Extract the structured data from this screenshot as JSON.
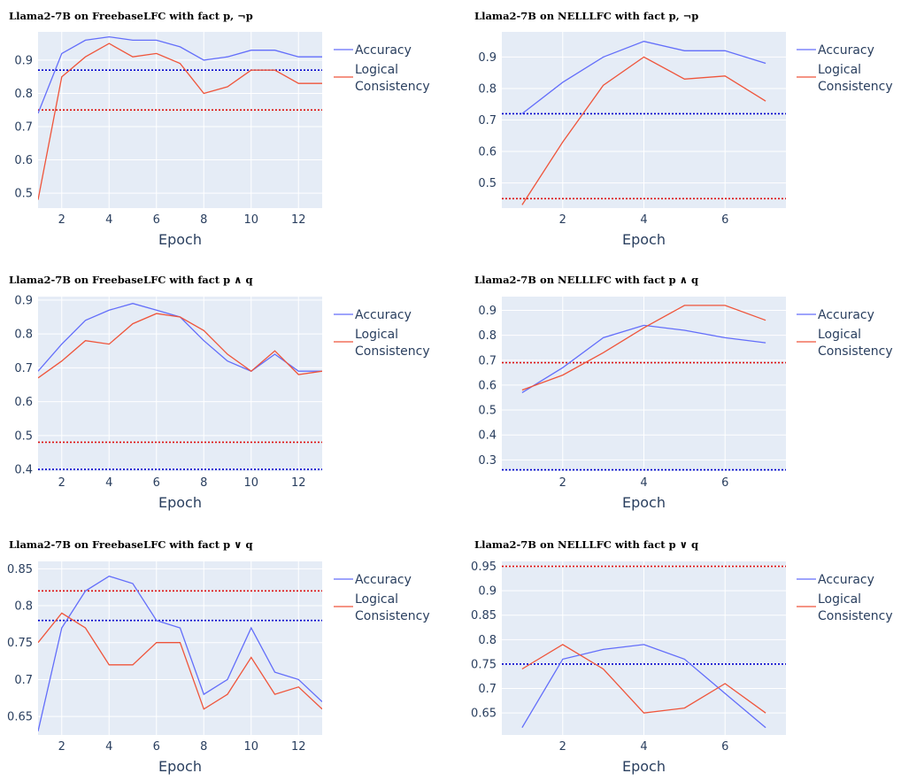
{
  "legend": {
    "accuracy": "Accuracy",
    "logical_line1": "Logical",
    "logical_line2": "Consistency"
  },
  "colors": {
    "accuracy": "#636efa",
    "logical": "#ef553b",
    "accuracy_baseline": "#0000cc",
    "logical_baseline": "#dd1111",
    "plot_bg": "#e5ecf6",
    "grid": "#ffffff"
  },
  "chart_data": [
    {
      "type": "line",
      "title": "Llama2-7B on FreebaseLFC with fact p, ¬p",
      "xlabel": "Epoch",
      "ylabel": "",
      "xlim": [
        1,
        13
      ],
      "ylim": [
        0.455,
        0.985
      ],
      "xticks": [
        2,
        4,
        6,
        8,
        10,
        12
      ],
      "yticks": [
        0.5,
        0.6,
        0.7,
        0.8,
        0.9
      ],
      "x": [
        1,
        2,
        3,
        4,
        5,
        6,
        7,
        8,
        9,
        10,
        11,
        12,
        13
      ],
      "series": [
        {
          "name": "Accuracy",
          "values": [
            0.74,
            0.92,
            0.96,
            0.97,
            0.96,
            0.96,
            0.94,
            0.9,
            0.91,
            0.93,
            0.93,
            0.91,
            0.91
          ]
        },
        {
          "name": "Logical Consistency",
          "values": [
            0.48,
            0.85,
            0.91,
            0.95,
            0.91,
            0.92,
            0.89,
            0.8,
            0.82,
            0.87,
            0.87,
            0.83,
            0.83
          ]
        }
      ],
      "baselines": {
        "accuracy": 0.87,
        "logical": 0.75
      },
      "grid": true,
      "legend": "right"
    },
    {
      "type": "line",
      "title": "Llama2-7B on NELLLFC with fact p, ¬p",
      "xlabel": "Epoch",
      "ylabel": "",
      "xlim": [
        0.5,
        7.5
      ],
      "ylim": [
        0.42,
        0.98
      ],
      "xticks": [
        2,
        4,
        6
      ],
      "yticks": [
        0.5,
        0.6,
        0.7,
        0.8,
        0.9
      ],
      "x": [
        1,
        2,
        3,
        4,
        5,
        6,
        7
      ],
      "series": [
        {
          "name": "Accuracy",
          "values": [
            0.72,
            0.82,
            0.9,
            0.95,
            0.92,
            0.92,
            0.88
          ]
        },
        {
          "name": "Logical Consistency",
          "values": [
            0.43,
            0.63,
            0.81,
            0.9,
            0.83,
            0.84,
            0.76
          ]
        }
      ],
      "baselines": {
        "accuracy": 0.72,
        "logical": 0.45
      },
      "grid": true,
      "legend": "right"
    },
    {
      "type": "line",
      "title": "Llama2-7B on FreebaseLFC with fact p ∧ q",
      "xlabel": "Epoch",
      "ylabel": "",
      "xlim": [
        1,
        13
      ],
      "ylim": [
        0.395,
        0.91
      ],
      "xticks": [
        2,
        4,
        6,
        8,
        10,
        12
      ],
      "yticks": [
        0.4,
        0.5,
        0.6,
        0.7,
        0.8,
        0.9
      ],
      "x": [
        1,
        2,
        3,
        4,
        5,
        6,
        7,
        8,
        9,
        10,
        11,
        12,
        13
      ],
      "series": [
        {
          "name": "Accuracy",
          "values": [
            0.69,
            0.77,
            0.84,
            0.87,
            0.89,
            0.87,
            0.85,
            0.78,
            0.72,
            0.69,
            0.74,
            0.69,
            0.69
          ]
        },
        {
          "name": "Logical Consistency",
          "values": [
            0.67,
            0.72,
            0.78,
            0.77,
            0.83,
            0.86,
            0.85,
            0.81,
            0.74,
            0.69,
            0.75,
            0.68,
            0.69
          ]
        }
      ],
      "baselines": {
        "accuracy": 0.4,
        "logical": 0.48
      },
      "grid": true,
      "legend": "right"
    },
    {
      "type": "line",
      "title": "Llama2-7B on NELLLFC with fact p ∧ q",
      "xlabel": "Epoch",
      "ylabel": "",
      "xlim": [
        0.5,
        7.5
      ],
      "ylim": [
        0.255,
        0.955
      ],
      "xticks": [
        2,
        4,
        6
      ],
      "yticks": [
        0.3,
        0.4,
        0.5,
        0.6,
        0.7,
        0.8,
        0.9
      ],
      "x": [
        1,
        2,
        3,
        4,
        5,
        6,
        7
      ],
      "series": [
        {
          "name": "Accuracy",
          "values": [
            0.57,
            0.67,
            0.79,
            0.84,
            0.82,
            0.79,
            0.77
          ]
        },
        {
          "name": "Logical Consistency",
          "values": [
            0.58,
            0.64,
            0.73,
            0.83,
            0.92,
            0.92,
            0.86
          ]
        }
      ],
      "baselines": {
        "accuracy": 0.26,
        "logical": 0.69
      },
      "grid": true,
      "legend": "right"
    },
    {
      "type": "line",
      "title": "Llama2-7B on FreebaseLFC with fact p ∨ q",
      "xlabel": "Epoch",
      "ylabel": "",
      "xlim": [
        1,
        13
      ],
      "ylim": [
        0.625,
        0.86
      ],
      "xticks": [
        2,
        4,
        6,
        8,
        10,
        12
      ],
      "yticks": [
        0.65,
        0.7,
        0.75,
        0.8,
        0.85
      ],
      "x": [
        1,
        2,
        3,
        4,
        5,
        6,
        7,
        8,
        9,
        10,
        11,
        12,
        13
      ],
      "series": [
        {
          "name": "Accuracy",
          "values": [
            0.63,
            0.77,
            0.82,
            0.84,
            0.83,
            0.78,
            0.77,
            0.68,
            0.7,
            0.77,
            0.71,
            0.7,
            0.67
          ]
        },
        {
          "name": "Logical Consistency",
          "values": [
            0.75,
            0.79,
            0.77,
            0.72,
            0.72,
            0.75,
            0.75,
            0.66,
            0.68,
            0.73,
            0.68,
            0.69,
            0.66
          ]
        }
      ],
      "baselines": {
        "accuracy": 0.78,
        "logical": 0.82
      },
      "grid": true,
      "legend": "right"
    },
    {
      "type": "line",
      "title": "Llama2-7B on NELLLFC with fact p ∨ q",
      "xlabel": "Epoch",
      "ylabel": "",
      "xlim": [
        0.5,
        7.5
      ],
      "ylim": [
        0.605,
        0.96
      ],
      "xticks": [
        2,
        4,
        6
      ],
      "yticks": [
        0.65,
        0.7,
        0.75,
        0.8,
        0.85,
        0.9,
        0.95
      ],
      "x": [
        1,
        2,
        3,
        4,
        5,
        6,
        7
      ],
      "series": [
        {
          "name": "Accuracy",
          "values": [
            0.62,
            0.76,
            0.78,
            0.79,
            0.76,
            0.69,
            0.62
          ]
        },
        {
          "name": "Logical Consistency",
          "values": [
            0.74,
            0.79,
            0.74,
            0.65,
            0.66,
            0.71,
            0.65
          ]
        }
      ],
      "baselines": {
        "accuracy": 0.75,
        "logical": 0.95
      },
      "grid": true,
      "legend": "right"
    }
  ]
}
